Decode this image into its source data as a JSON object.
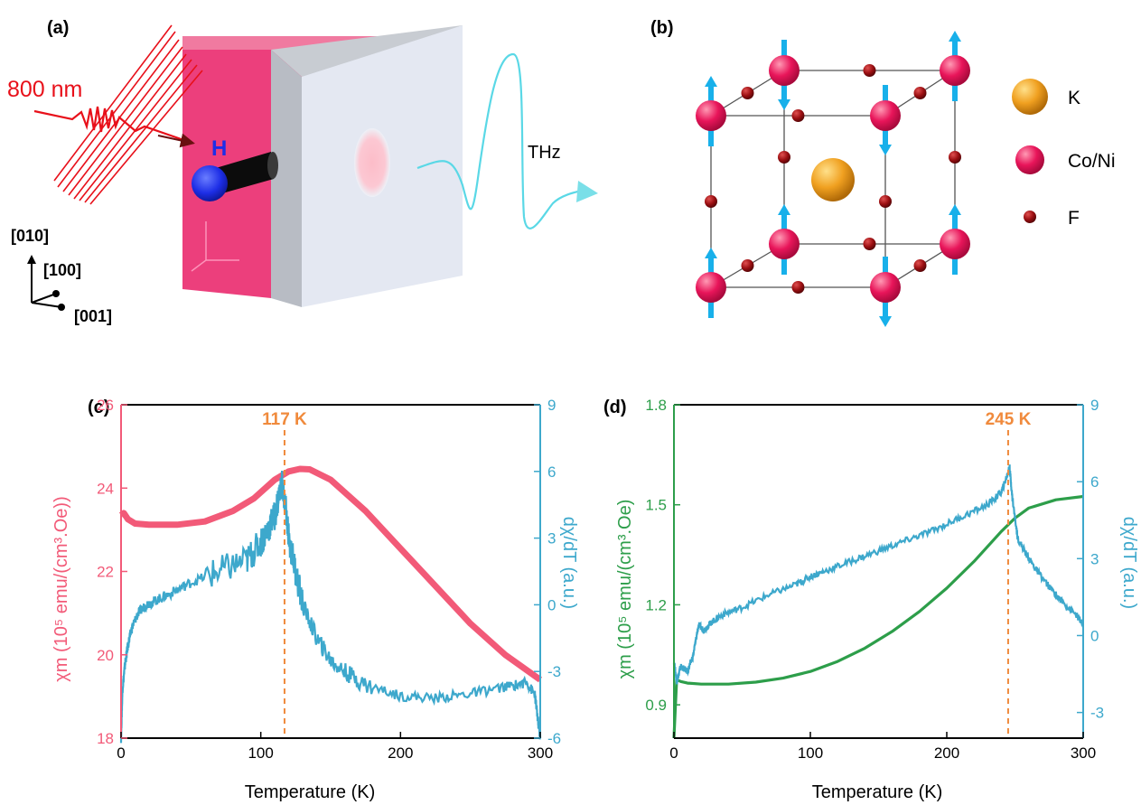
{
  "panel_labels": {
    "a": "(a)",
    "b": "(b)",
    "c": "(c)",
    "d": "(d)"
  },
  "schematic": {
    "laser_label": "800 nm",
    "field_label": "H",
    "emission_label": "THz",
    "axes": {
      "up": "[010]",
      "mid": "[100]",
      "out": "[001]"
    }
  },
  "lattice": {
    "legend": [
      {
        "label": "K",
        "color": "#f0a020"
      },
      {
        "label": "Co/Ni",
        "color": "#e8155a"
      },
      {
        "label": "F",
        "color": "#9b0f12"
      }
    ],
    "spin_color": "#18b0ea"
  },
  "colors": {
    "chi_c": "#f25a78",
    "dchi": "#3da8cc",
    "chi_d": "#2d9e4a",
    "marker": "#f08a3c"
  },
  "chart_data": [
    {
      "type": "line",
      "panel": "(c)",
      "xlabel": "Temperature (K)",
      "xlim": [
        0,
        300
      ],
      "xticks": [
        0,
        100,
        200,
        300
      ],
      "ylabel_left": "χm (10⁵ emu/(cm³.Oe))",
      "ylim_left": [
        18,
        26
      ],
      "yticks_left": [
        18,
        20,
        22,
        24,
        26
      ],
      "ylabel_right": "dχ/dT (a.u.)",
      "ylim_right": [
        -6,
        9
      ],
      "yticks_right": [
        -6,
        -3,
        0,
        3,
        6,
        9
      ],
      "marker": {
        "x": 117,
        "label": "117 K"
      },
      "series": [
        {
          "axis": "left",
          "x": [
            0,
            2,
            5,
            10,
            20,
            40,
            60,
            80,
            95,
            110,
            120,
            128,
            135,
            150,
            175,
            200,
            225,
            250,
            275,
            300
          ],
          "y": [
            23.35,
            23.4,
            23.25,
            23.15,
            23.12,
            23.12,
            23.2,
            23.45,
            23.75,
            24.2,
            24.4,
            24.46,
            24.45,
            24.2,
            23.45,
            22.55,
            21.65,
            20.75,
            20.0,
            19.4
          ]
        },
        {
          "axis": "right",
          "x": [
            0,
            1,
            3,
            5,
            8,
            12,
            18,
            25,
            35,
            50,
            70,
            90,
            100,
            105,
            110,
            115,
            118,
            120,
            125,
            130,
            140,
            150,
            160,
            175,
            200,
            225,
            250,
            275,
            290,
            296,
            298,
            300
          ],
          "y": [
            -6,
            -3.8,
            -2.6,
            -1.8,
            -1.0,
            -0.4,
            0,
            0.2,
            0.5,
            1.0,
            1.5,
            2.0,
            2.8,
            3.4,
            4.0,
            5.5,
            4.2,
            3.0,
            1.5,
            0.0,
            -1.5,
            -2.5,
            -3.0,
            -3.6,
            -4.1,
            -4.2,
            -4.0,
            -3.7,
            -3.5,
            -4.0,
            -5.0,
            -6.0
          ]
        }
      ]
    },
    {
      "type": "line",
      "panel": "(d)",
      "xlabel": "Temperature (K)",
      "xlim": [
        0,
        300
      ],
      "xticks": [
        0,
        100,
        200,
        300
      ],
      "ylabel_left": "χm (10⁵ emu/(cm³.Oe)",
      "ylim_left": [
        0.8,
        1.8
      ],
      "yticks_left": [
        0.9,
        1.2,
        1.5,
        1.8
      ],
      "ylabel_right": "dχ/dT (a.u.)",
      "ylim_right": [
        -4,
        9
      ],
      "yticks_right": [
        -3,
        0,
        3,
        6,
        9
      ],
      "marker": {
        "x": 245,
        "label": "245 K"
      },
      "series": [
        {
          "axis": "left",
          "x": [
            0,
            2,
            5,
            10,
            20,
            40,
            60,
            80,
            100,
            120,
            140,
            160,
            180,
            200,
            220,
            240,
            250,
            260,
            280,
            300
          ],
          "y": [
            0.8,
            0.975,
            0.97,
            0.965,
            0.962,
            0.962,
            0.968,
            0.98,
            1.0,
            1.03,
            1.07,
            1.12,
            1.18,
            1.25,
            1.33,
            1.42,
            1.46,
            1.49,
            1.515,
            1.525
          ]
        },
        {
          "axis": "right",
          "x": [
            0,
            2,
            5,
            10,
            14,
            18,
            22,
            27,
            35,
            50,
            70,
            90,
            100,
            110,
            130,
            150,
            170,
            190,
            210,
            230,
            240,
            244,
            246,
            248,
            252,
            258,
            265,
            275,
            285,
            295,
            300
          ],
          "y": [
            -1.0,
            -1.8,
            -1.2,
            -1.4,
            -0.8,
            0.4,
            0.2,
            0.5,
            0.8,
            1.1,
            1.6,
            2.0,
            2.3,
            2.5,
            2.9,
            3.3,
            3.7,
            4.1,
            4.6,
            5.1,
            5.6,
            6.2,
            6.6,
            5.4,
            3.8,
            3.2,
            2.6,
            1.9,
            1.3,
            0.8,
            0.4
          ]
        }
      ]
    }
  ]
}
